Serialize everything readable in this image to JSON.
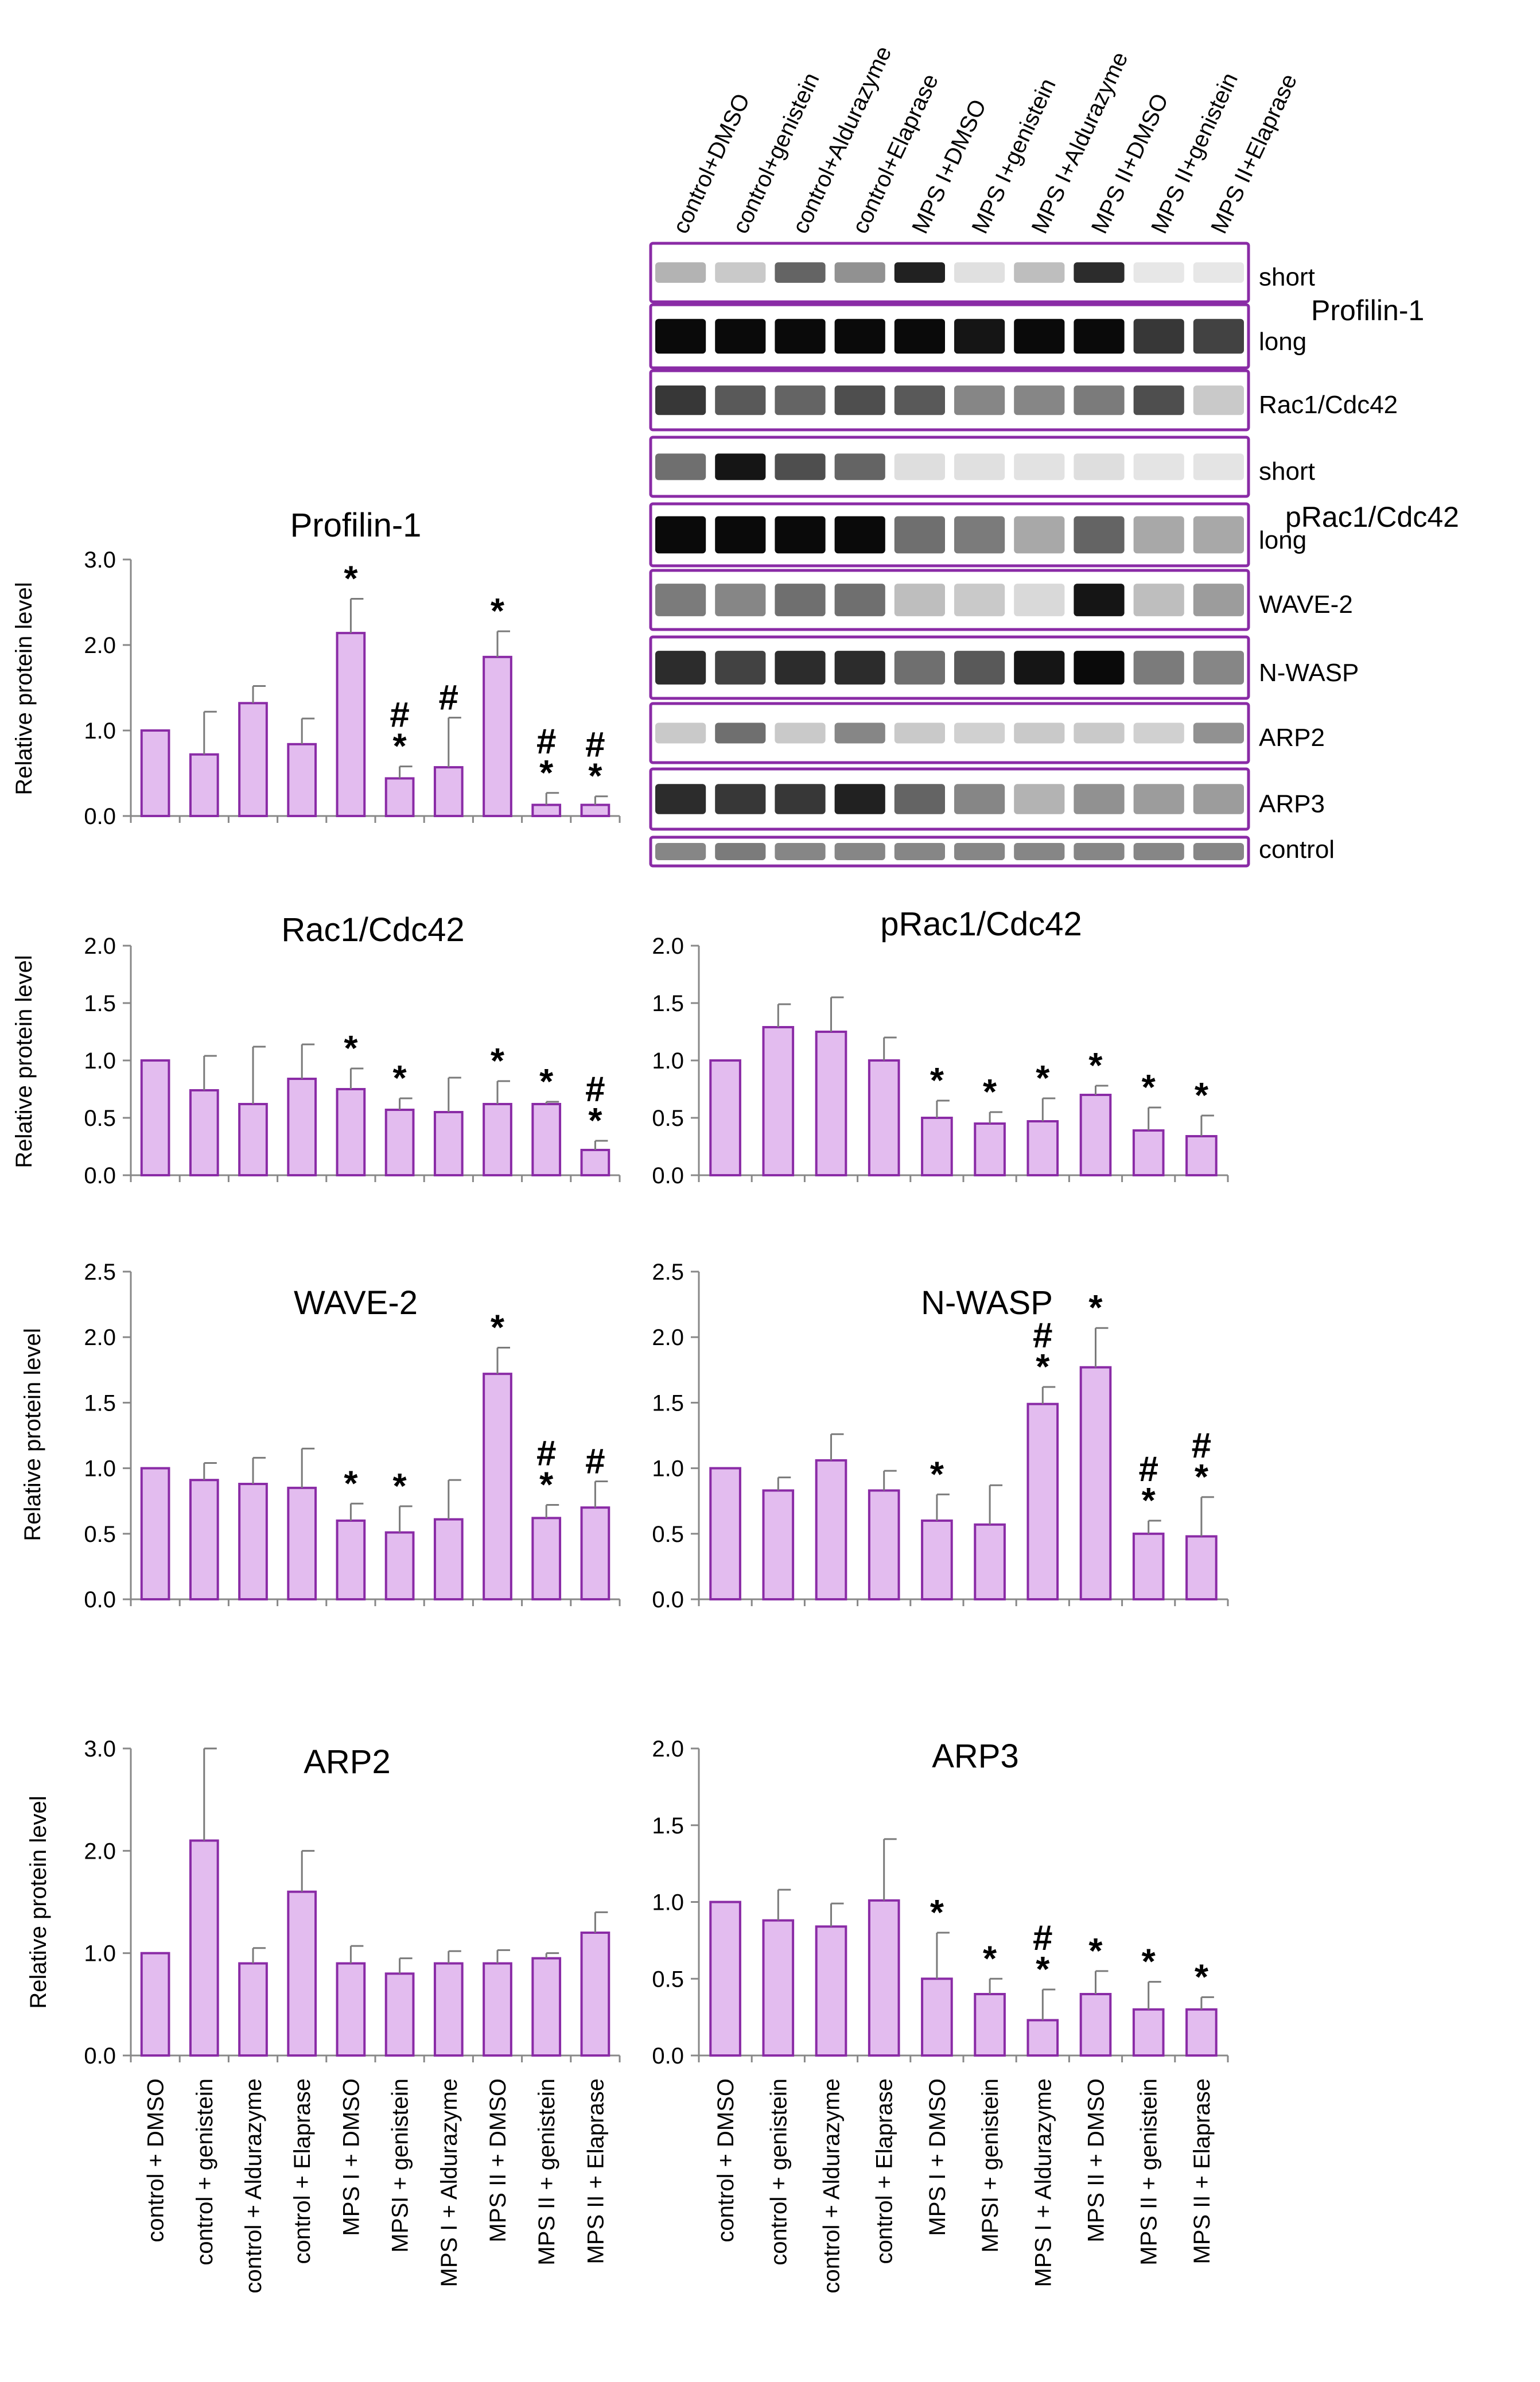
{
  "colors": {
    "bar_fill": "#e3bcef",
    "bar_stroke": "#8a2ba6",
    "axis": "#888888",
    "error": "#7a7a7a",
    "text": "#000000",
    "blot_frame": "#8a2ba6",
    "band": "#2a2a2a"
  },
  "blot": {
    "lanes": [
      "control+DMSO",
      "control+genistein",
      "control+Aldurazyme",
      "control+Elaprase",
      "MPS I+DMSO",
      "MPS I+genistein",
      "MPS I+Aldurazyme",
      "MPS II+DMSO",
      "MPS II+genistein",
      "MPS II+Elaprase"
    ],
    "strips": [
      {
        "label": "short",
        "intensity": [
          0.25,
          0.15,
          0.6,
          0.4,
          0.9,
          0.05,
          0.2,
          0.85,
          0.02,
          0.02
        ],
        "thickness": 0.35
      },
      {
        "label": "long",
        "intensity": [
          1,
          1,
          1,
          1,
          1,
          0.95,
          1,
          1,
          0.8,
          0.75
        ],
        "thickness": 0.55
      },
      {
        "label": "Rac1/Cdc42",
        "intensity": [
          0.8,
          0.65,
          0.6,
          0.7,
          0.65,
          0.45,
          0.45,
          0.5,
          0.7,
          0.15
        ],
        "thickness": 0.5
      },
      {
        "label": "short",
        "intensity": [
          0.55,
          0.95,
          0.7,
          0.6,
          0.06,
          0.05,
          0.04,
          0.06,
          0.03,
          0.03
        ],
        "thickness": 0.45
      },
      {
        "label": "long",
        "intensity": [
          1,
          1,
          1,
          1,
          0.55,
          0.5,
          0.3,
          0.6,
          0.3,
          0.3
        ],
        "thickness": 0.6
      },
      {
        "label": "WAVE-2",
        "intensity": [
          0.5,
          0.45,
          0.55,
          0.55,
          0.2,
          0.15,
          0.08,
          0.95,
          0.2,
          0.35
        ],
        "thickness": 0.55
      },
      {
        "label": "N-WASP",
        "intensity": [
          0.85,
          0.75,
          0.85,
          0.85,
          0.55,
          0.65,
          0.95,
          1,
          0.5,
          0.45
        ],
        "thickness": 0.55
      },
      {
        "label": "ARP2",
        "intensity": [
          0.15,
          0.55,
          0.15,
          0.45,
          0.15,
          0.12,
          0.15,
          0.15,
          0.12,
          0.4
        ],
        "thickness": 0.35
      },
      {
        "label": "ARP3",
        "intensity": [
          0.85,
          0.8,
          0.8,
          0.9,
          0.6,
          0.45,
          0.25,
          0.4,
          0.35,
          0.35
        ],
        "thickness": 0.5
      },
      {
        "label": "control",
        "intensity": [
          0.45,
          0.5,
          0.45,
          0.45,
          0.45,
          0.45,
          0.45,
          0.45,
          0.45,
          0.45
        ],
        "thickness": 0.6
      }
    ],
    "protein_labels": [
      "Profilin-1",
      "pRac1/Cdc42"
    ]
  },
  "chart_data": [
    {
      "type": "bar",
      "title": "Profilin-1",
      "ylabel": "Relative protein level",
      "ylim": [
        0,
        3.0
      ],
      "ticks": [
        "0.0",
        "1.0",
        "2.0",
        "3.0"
      ],
      "categories": [
        "control + DMSO",
        "control + genistein",
        "control + Aldurazyme",
        "control + Elaprase",
        "MPS I + DMSO",
        "MPSI + genistein",
        "MPS I + Aldurazyme",
        "MPS II + DMSO",
        "MPS II + genistein",
        "MPS II + Elaprase"
      ],
      "values": [
        1.0,
        0.72,
        1.32,
        0.84,
        2.14,
        0.44,
        0.57,
        1.86,
        0.13,
        0.13
      ],
      "errors": [
        0,
        0.5,
        0.2,
        0.3,
        0.4,
        0.14,
        0.58,
        0.3,
        0.14,
        0.1
      ],
      "annotations": [
        {
          "index": 4,
          "marks": [
            "*"
          ]
        },
        {
          "index": 5,
          "marks": [
            "#",
            "*"
          ]
        },
        {
          "index": 6,
          "marks": [
            "#"
          ]
        },
        {
          "index": 7,
          "marks": [
            "*"
          ]
        },
        {
          "index": 8,
          "marks": [
            "#",
            "*"
          ]
        },
        {
          "index": 9,
          "marks": [
            "#",
            "*"
          ]
        }
      ]
    },
    {
      "type": "bar",
      "title": "Rac1/Cdc42",
      "ylabel": "Relative protein level",
      "ylim": [
        0,
        2.0
      ],
      "ticks": [
        "0.0",
        "0.5",
        "1.0",
        "1.5",
        "2.0"
      ],
      "categories": [
        "control + DMSO",
        "control + genistein",
        "control + Aldurazyme",
        "control + Elaprase",
        "MPS I + DMSO",
        "MPSI + genistein",
        "MPS I + Aldurazyme",
        "MPS II + DMSO",
        "MPS II + genistein",
        "MPS II + Elaprase"
      ],
      "values": [
        1.0,
        0.74,
        0.62,
        0.84,
        0.75,
        0.57,
        0.55,
        0.62,
        0.62,
        0.22
      ],
      "errors": [
        0,
        0.3,
        0.5,
        0.3,
        0.18,
        0.1,
        0.3,
        0.2,
        0.02,
        0.08
      ],
      "annotations": [
        {
          "index": 4,
          "marks": [
            "*"
          ]
        },
        {
          "index": 5,
          "marks": [
            "*"
          ]
        },
        {
          "index": 7,
          "marks": [
            "*"
          ]
        },
        {
          "index": 8,
          "marks": [
            "*"
          ]
        },
        {
          "index": 9,
          "marks": [
            "#",
            "*"
          ]
        }
      ]
    },
    {
      "type": "bar",
      "title": "pRac1/Cdc42",
      "ylabel": "",
      "ylim": [
        0,
        2.0
      ],
      "ticks": [
        "0.0",
        "0.5",
        "1.0",
        "1.5",
        "2.0"
      ],
      "categories": [
        "control + DMSO",
        "control + genistein",
        "control + Aldurazyme",
        "control + Elaprase",
        "MPS I + DMSO",
        "MPSI + genistein",
        "MPS I + Aldurazyme",
        "MPS II + DMSO",
        "MPS II + genistein",
        "MPS II + Elaprase"
      ],
      "values": [
        1.0,
        1.29,
        1.25,
        1.0,
        0.5,
        0.45,
        0.47,
        0.7,
        0.39,
        0.34
      ],
      "errors": [
        0,
        0.2,
        0.3,
        0.2,
        0.15,
        0.1,
        0.2,
        0.08,
        0.2,
        0.18
      ],
      "annotations": [
        {
          "index": 4,
          "marks": [
            "*"
          ]
        },
        {
          "index": 5,
          "marks": [
            "*"
          ]
        },
        {
          "index": 6,
          "marks": [
            "*"
          ]
        },
        {
          "index": 7,
          "marks": [
            "*"
          ]
        },
        {
          "index": 8,
          "marks": [
            "*"
          ]
        },
        {
          "index": 9,
          "marks": [
            "*"
          ]
        }
      ]
    },
    {
      "type": "bar",
      "title": "WAVE-2",
      "ylabel": "Relative protein level",
      "ylim": [
        0,
        2.5
      ],
      "ticks": [
        "0.0",
        "0.5",
        "1.0",
        "1.5",
        "2.0",
        "2.5"
      ],
      "categories": [
        "control + DMSO",
        "control + genistein",
        "control + Aldurazyme",
        "control + Elaprase",
        "MPS I + DMSO",
        "MPSI + genistein",
        "MPS I + Aldurazyme",
        "MPS II + DMSO",
        "MPS II + genistein",
        "MPS II + Elaprase"
      ],
      "values": [
        1.0,
        0.91,
        0.88,
        0.85,
        0.6,
        0.51,
        0.61,
        1.72,
        0.62,
        0.7
      ],
      "errors": [
        0,
        0.13,
        0.2,
        0.3,
        0.13,
        0.2,
        0.3,
        0.2,
        0.1,
        0.2
      ],
      "annotations": [
        {
          "index": 4,
          "marks": [
            "*"
          ]
        },
        {
          "index": 5,
          "marks": [
            "*"
          ]
        },
        {
          "index": 7,
          "marks": [
            "*"
          ]
        },
        {
          "index": 8,
          "marks": [
            "#",
            "*"
          ]
        },
        {
          "index": 9,
          "marks": [
            "#"
          ]
        }
      ]
    },
    {
      "type": "bar",
      "title": "N-WASP",
      "ylabel": "",
      "ylim": [
        0,
        2.5
      ],
      "ticks": [
        "0.0",
        "0.5",
        "1.0",
        "1.5",
        "2.0",
        "2.5"
      ],
      "categories": [
        "control + DMSO",
        "control + genistein",
        "control + Aldurazyme",
        "control + Elaprase",
        "MPS I + DMSO",
        "MPSI + genistein",
        "MPS I + Aldurazyme",
        "MPS II + DMSO",
        "MPS II + genistein",
        "MPS II + Elaprase"
      ],
      "values": [
        1.0,
        0.83,
        1.06,
        0.83,
        0.6,
        0.57,
        1.49,
        1.77,
        0.5,
        0.48
      ],
      "errors": [
        0,
        0.1,
        0.2,
        0.15,
        0.2,
        0.3,
        0.13,
        0.3,
        0.1,
        0.3
      ],
      "annotations": [
        {
          "index": 4,
          "marks": [
            "*"
          ]
        },
        {
          "index": 6,
          "marks": [
            "#",
            "*"
          ]
        },
        {
          "index": 7,
          "marks": [
            "*"
          ]
        },
        {
          "index": 8,
          "marks": [
            "#",
            "*"
          ]
        },
        {
          "index": 9,
          "marks": [
            "#",
            "*"
          ]
        }
      ]
    },
    {
      "type": "bar",
      "title": "ARP2",
      "ylabel": "Relative protein level",
      "ylim": [
        0,
        3.0
      ],
      "ticks": [
        "0.0",
        "1.0",
        "2.0",
        "3.0"
      ],
      "categories": [
        "control + DMSO",
        "control + genistein",
        "control + Aldurazyme",
        "control + Elaprase",
        "MPS I + DMSO",
        "MPSI + genistein",
        "MPS I + Aldurazyme",
        "MPS II + DMSO",
        "MPS II + genistein",
        "MPS II + Elaprase"
      ],
      "values": [
        1.0,
        2.1,
        0.9,
        1.6,
        0.9,
        0.8,
        0.9,
        0.9,
        0.95,
        1.2
      ],
      "errors": [
        0,
        0.9,
        0.15,
        0.4,
        0.17,
        0.15,
        0.12,
        0.13,
        0.05,
        0.2
      ],
      "annotations": []
    },
    {
      "type": "bar",
      "title": "ARP3",
      "ylabel": "",
      "ylim": [
        0,
        2.0
      ],
      "ticks": [
        "0.0",
        "0.5",
        "1.0",
        "1.5",
        "2.0"
      ],
      "categories": [
        "control + DMSO",
        "control + genistein",
        "control + Aldurazyme",
        "control + Elaprase",
        "MPS I + DMSO",
        "MPSI + genistein",
        "MPS I + Aldurazyme",
        "MPS II + DMSO",
        "MPS II + genistein",
        "MPS II + Elaprase"
      ],
      "values": [
        1.0,
        0.88,
        0.84,
        1.01,
        0.5,
        0.4,
        0.23,
        0.4,
        0.3,
        0.3
      ],
      "errors": [
        0,
        0.2,
        0.15,
        0.4,
        0.3,
        0.1,
        0.2,
        0.15,
        0.18,
        0.08
      ],
      "annotations": [
        {
          "index": 4,
          "marks": [
            "*"
          ]
        },
        {
          "index": 5,
          "marks": [
            "*"
          ]
        },
        {
          "index": 6,
          "marks": [
            "#",
            "*"
          ]
        },
        {
          "index": 7,
          "marks": [
            "*"
          ]
        },
        {
          "index": 8,
          "marks": [
            "*"
          ]
        },
        {
          "index": 9,
          "marks": [
            "*"
          ]
        }
      ]
    }
  ]
}
